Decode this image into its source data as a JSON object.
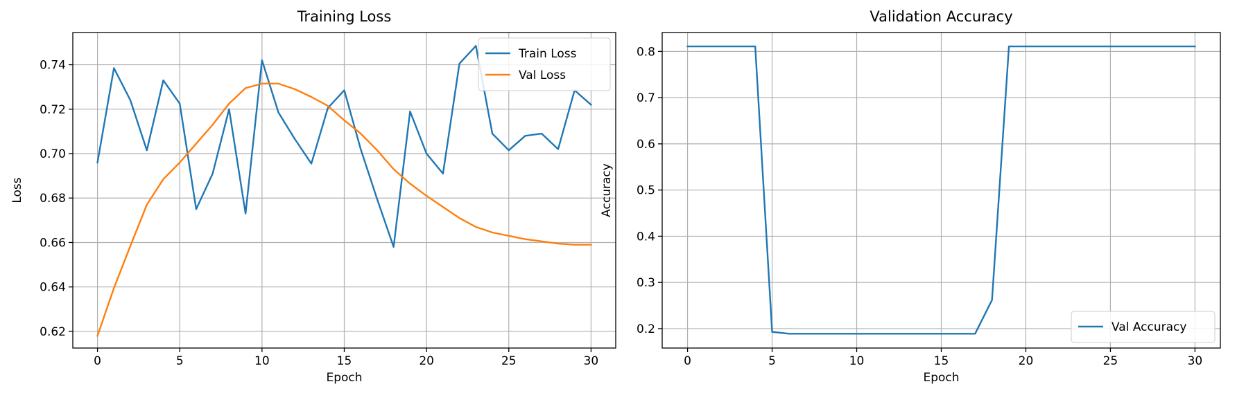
{
  "chart_data": [
    {
      "type": "line",
      "title": "Training Loss",
      "xlabel": "Epoch",
      "ylabel": "Loss",
      "xlim": [
        -1.5,
        31.5
      ],
      "ylim": [
        0.6125,
        0.7545
      ],
      "xticks": [
        0,
        5,
        10,
        15,
        20,
        25,
        30
      ],
      "xtick_labels": [
        "0",
        "5",
        "10",
        "15",
        "20",
        "25",
        "30"
      ],
      "yticks": [
        0.62,
        0.64,
        0.66,
        0.68,
        0.7,
        0.72,
        0.74
      ],
      "ytick_labels": [
        "0.62",
        "0.64",
        "0.66",
        "0.68",
        "0.70",
        "0.72",
        "0.74"
      ],
      "grid": true,
      "legend_position": "top-right",
      "x": [
        0,
        1,
        2,
        3,
        4,
        5,
        6,
        7,
        8,
        9,
        10,
        11,
        12,
        13,
        14,
        15,
        16,
        17,
        18,
        19,
        20,
        21,
        22,
        23,
        24,
        25,
        26,
        27,
        28,
        29,
        30
      ],
      "series": [
        {
          "name": "Train Loss",
          "color": "#1f77b4",
          "values": [
            0.696,
            0.7385,
            0.724,
            0.7015,
            0.733,
            0.7225,
            0.675,
            0.691,
            0.72,
            0.673,
            0.742,
            0.7185,
            0.7065,
            0.6955,
            0.7205,
            0.7285,
            0.702,
            0.6795,
            0.658,
            0.719,
            0.7,
            0.691,
            0.7405,
            0.7485,
            0.709,
            0.7015,
            0.708,
            0.709,
            0.702,
            0.7285,
            0.722
          ]
        },
        {
          "name": "Val Loss",
          "color": "#ff7f0e",
          "values": [
            0.618,
            0.6395,
            0.6585,
            0.677,
            0.6885,
            0.696,
            0.7045,
            0.713,
            0.7225,
            0.7295,
            0.7315,
            0.7315,
            0.729,
            0.7255,
            0.7215,
            0.715,
            0.709,
            0.7015,
            0.693,
            0.6865,
            0.681,
            0.676,
            0.671,
            0.667,
            0.6645,
            0.663,
            0.6615,
            0.6605,
            0.6595,
            0.659,
            0.659
          ]
        }
      ]
    },
    {
      "type": "line",
      "title": "Validation Accuracy",
      "xlabel": "Epoch",
      "ylabel": "Accuracy",
      "xlim": [
        -1.5,
        31.5
      ],
      "ylim": [
        0.158,
        0.841
      ],
      "xticks": [
        0,
        5,
        10,
        15,
        20,
        25,
        30
      ],
      "xtick_labels": [
        "0",
        "5",
        "10",
        "15",
        "20",
        "25",
        "30"
      ],
      "yticks": [
        0.2,
        0.3,
        0.4,
        0.5,
        0.6,
        0.7,
        0.8
      ],
      "ytick_labels": [
        "0.2",
        "0.3",
        "0.4",
        "0.5",
        "0.6",
        "0.7",
        "0.8"
      ],
      "grid": true,
      "legend_position": "bottom-right",
      "x": [
        0,
        1,
        2,
        3,
        4,
        5,
        6,
        7,
        8,
        9,
        10,
        11,
        12,
        13,
        14,
        15,
        16,
        17,
        18,
        19,
        20,
        21,
        22,
        23,
        24,
        25,
        26,
        27,
        28,
        29,
        30
      ],
      "series": [
        {
          "name": "Val Accuracy",
          "color": "#1f77b4",
          "values": [
            0.811,
            0.811,
            0.811,
            0.811,
            0.811,
            0.193,
            0.189,
            0.189,
            0.189,
            0.189,
            0.189,
            0.189,
            0.189,
            0.189,
            0.189,
            0.189,
            0.189,
            0.189,
            0.262,
            0.811,
            0.811,
            0.811,
            0.811,
            0.811,
            0.811,
            0.811,
            0.811,
            0.811,
            0.811,
            0.811,
            0.811
          ]
        }
      ]
    }
  ]
}
